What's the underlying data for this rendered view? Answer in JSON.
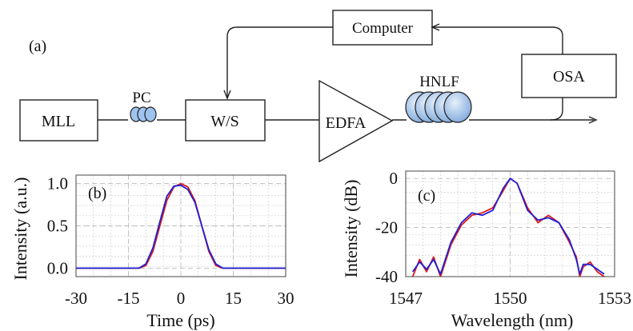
{
  "colors": {
    "ink": "#222222",
    "measured": "#1f1fd6",
    "simulated": "#e01a1a",
    "coil_fill": "#9ec3ef"
  },
  "setup": {
    "panel_label": "(a)",
    "blocks": {
      "computer": "Computer",
      "osa": "OSA",
      "mll": "MLL",
      "ws": "W/S",
      "edfa": "EDFA"
    },
    "labels": {
      "pc": "PC",
      "hnlf": "HNLF"
    }
  },
  "chart_data": [
    {
      "type": "line",
      "panel_label": "(b)",
      "xlabel": "Time (ps)",
      "ylabel": "Intensity (a.u.)",
      "xlim": [
        -30,
        30
      ],
      "ylim": [
        -0.1,
        1.1
      ],
      "xticks": [
        -30,
        -15,
        0,
        15,
        30
      ],
      "yticks": [
        0.0,
        0.5,
        1.0
      ],
      "ytick_labels": [
        "0.0",
        "0.5",
        "1.0"
      ],
      "grid": true,
      "series": [
        {
          "color": "#e01a1a",
          "x": [
            -30,
            -12,
            -10,
            -8,
            -6,
            -4,
            -2,
            0,
            2,
            4,
            6,
            8,
            10,
            12,
            30
          ],
          "y": [
            0,
            0,
            0.03,
            0.2,
            0.5,
            0.8,
            0.96,
            1.0,
            0.96,
            0.8,
            0.5,
            0.2,
            0.03,
            0,
            0
          ]
        },
        {
          "color": "#1f1fd6",
          "x": [
            -30,
            -12,
            -10,
            -8,
            -6,
            -4,
            -2,
            0,
            2,
            4,
            6,
            8,
            10,
            12,
            30
          ],
          "y": [
            0,
            0,
            0.05,
            0.24,
            0.55,
            0.85,
            0.97,
            0.98,
            0.93,
            0.78,
            0.5,
            0.22,
            0.05,
            0,
            0
          ]
        }
      ]
    },
    {
      "type": "line",
      "panel_label": "(c)",
      "xlabel": "Wavelength (nm)",
      "ylabel": "Intensity (dB)",
      "xlim": [
        1547,
        1553
      ],
      "ylim": [
        -40,
        3
      ],
      "xticks": [
        1547,
        1550,
        1553
      ],
      "yticks": [
        0,
        -20,
        -40
      ],
      "grid": true,
      "series": [
        {
          "color": "#e01a1a",
          "x": [
            1547.2,
            1547.4,
            1547.6,
            1547.8,
            1548.0,
            1548.3,
            1548.6,
            1548.9,
            1549.2,
            1549.5,
            1549.8,
            1550.0,
            1550.2,
            1550.5,
            1550.8,
            1551.1,
            1551.4,
            1551.7,
            1551.9,
            1552.0,
            1552.1,
            1552.3,
            1552.5,
            1552.7
          ],
          "y": [
            -40,
            -33,
            -38,
            -32,
            -40,
            -27,
            -19,
            -15,
            -14,
            -12,
            -5,
            0,
            -2,
            -12,
            -18,
            -15,
            -18,
            -26,
            -32,
            -40,
            -36,
            -34,
            -38,
            -40
          ]
        },
        {
          "color": "#1f1fd6",
          "x": [
            1547.2,
            1547.4,
            1547.6,
            1547.8,
            1548.0,
            1548.3,
            1548.6,
            1548.9,
            1549.2,
            1549.5,
            1549.8,
            1550.0,
            1550.2,
            1550.5,
            1550.8,
            1551.1,
            1551.4,
            1551.7,
            1551.9,
            1552.0,
            1552.1,
            1552.3,
            1552.5,
            1552.7
          ],
          "y": [
            -38,
            -34,
            -37,
            -33,
            -39,
            -26,
            -18,
            -14,
            -15,
            -13,
            -4,
            0,
            -2,
            -13,
            -17,
            -16,
            -18,
            -25,
            -33,
            -39,
            -35,
            -35,
            -37,
            -39
          ]
        }
      ]
    }
  ]
}
